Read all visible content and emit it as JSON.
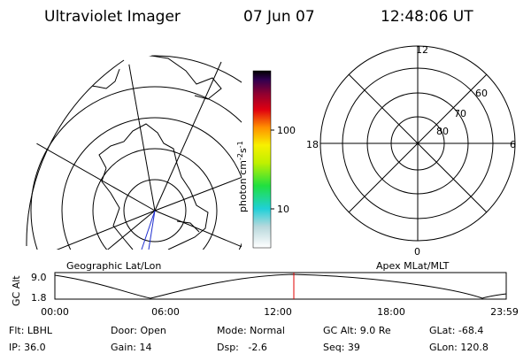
{
  "header": {
    "instrument": "Ultraviolet Imager",
    "date": "07 Jun 07",
    "time": "12:48:06 UT"
  },
  "colorbar": {
    "ticks": [
      "100",
      "10"
    ],
    "unit": {
      "base1": "photon cm",
      "exp1": "-2",
      "base2": "s",
      "exp2": "-1"
    }
  },
  "left_panel": {
    "label": "Geographic Lat/Lon"
  },
  "right_panel": {
    "label": "Apex MLat/MLT",
    "mlt_labels": [
      "12",
      "18",
      "6",
      "0"
    ],
    "mlat_labels": [
      "60",
      "70",
      "80"
    ]
  },
  "altitude_plot": {
    "ylabel": "GC Alt",
    "yticks": [
      "9.0",
      "1.8"
    ],
    "xticks": [
      "00:00",
      "06:00",
      "12:00",
      "18:00",
      "23:59"
    ]
  },
  "info": {
    "rows": [
      [
        "Flt: LBHL",
        "Door: Open",
        "Mode: Normal",
        "GC Alt: 9.0 Re",
        "GLat: -68.4"
      ],
      [
        "IP: 36.0",
        "Gain: 14",
        "Dsp:   -2.6",
        "Seq: 39",
        "GLon: 120.8"
      ]
    ]
  }
}
